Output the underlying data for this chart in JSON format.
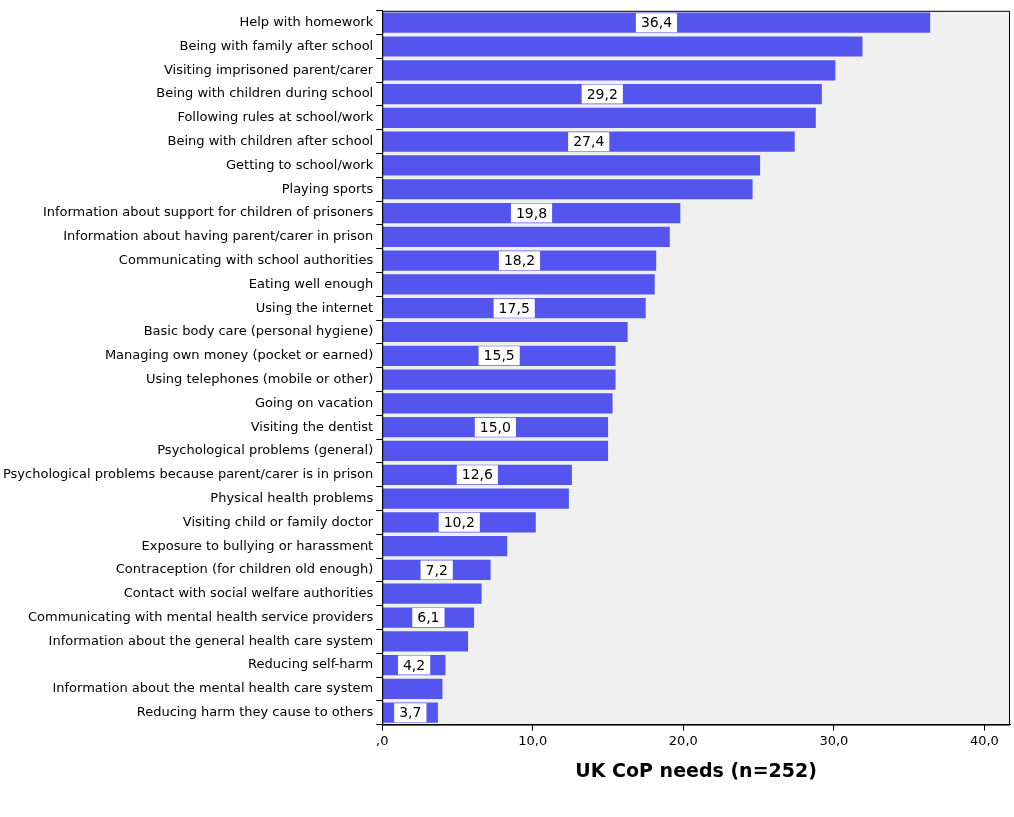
{
  "chart_data": {
    "type": "bar",
    "orientation": "horizontal",
    "xlabel": "UK CoP needs (n=252)",
    "categories": [
      "Help with homework",
      "Being with family after school",
      "Visiting imprisoned parent/carer",
      "Being with children during school",
      "Following rules at school/work",
      "Being with children after school",
      "Getting to school/work",
      "Playing sports",
      "Information about support for children of prisoners",
      "Information about having parent/carer in prison",
      "Communicating with school authorities",
      "Eating well enough",
      "Using the internet",
      "Basic body care (personal hygiene)",
      "Managing own money (pocket or earned)",
      "Using telephones (mobile or other)",
      "Going on vacation",
      "Visiting the dentist",
      "Psychological problems (general)",
      "Psychological problems because parent/carer is in prison",
      "Physical health problems",
      "Visiting child or family doctor",
      "Exposure to bullying or harassment",
      "Contraception (for children old enough)",
      "Contact with social welfare authorities",
      "Communicating with mental health service providers",
      "Information about the general health care system",
      "Reducing self-harm",
      "Information about the mental health care system",
      "Reducing harm they cause to others"
    ],
    "values": [
      36.4,
      31.9,
      30.1,
      29.2,
      28.8,
      27.4,
      25.1,
      24.6,
      19.8,
      19.1,
      18.2,
      18.1,
      17.5,
      16.3,
      15.5,
      15.5,
      15.3,
      15.0,
      15.0,
      12.6,
      12.4,
      10.2,
      8.3,
      7.2,
      6.6,
      6.1,
      5.7,
      4.2,
      4.0,
      3.7
    ],
    "value_labels": [
      "36,4",
      null,
      null,
      "29,2",
      null,
      "27,4",
      null,
      null,
      "19,8",
      null,
      "18,2",
      null,
      "17,5",
      null,
      "15,5",
      null,
      null,
      "15,0",
      null,
      "12,6",
      null,
      "10,2",
      null,
      "7,2",
      null,
      "6,1",
      null,
      "4,2",
      null,
      "3,7"
    ],
    "color": "#5454ee",
    "xlim": [
      0,
      41.7
    ],
    "xticks": [
      {
        "value": 0,
        "label": ",0"
      },
      {
        "value": 10,
        "label": "10,0"
      },
      {
        "value": 20,
        "label": "20,0"
      },
      {
        "value": 30,
        "label": "30,0"
      },
      {
        "value": 40,
        "label": "40,0"
      }
    ],
    "grid": false,
    "legend": false
  }
}
